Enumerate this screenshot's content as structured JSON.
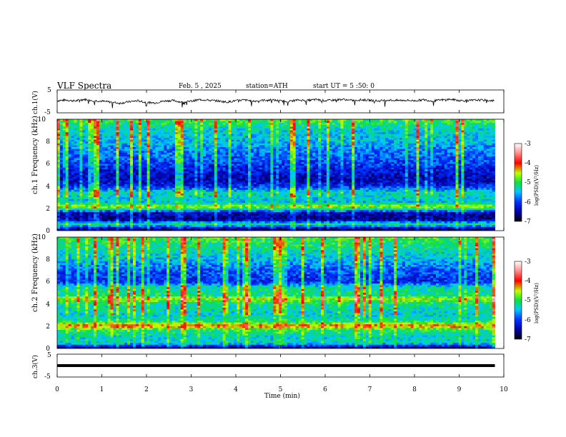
{
  "header": {
    "title": "VLF Spectra",
    "date": "Feb. 5 , 2025",
    "station": "station=ATH",
    "start": "start UT = 5 :50: 0"
  },
  "chart_data": [
    {
      "type": "line",
      "name": "ch1-waveform",
      "ylabel": "ch.1(V)",
      "ylim": [
        -5,
        5
      ],
      "y_ticks": [
        "5",
        "-5"
      ],
      "xlim": [
        0,
        10
      ],
      "x": [
        0.0,
        0.2,
        0.4,
        0.6,
        0.8,
        1.0,
        1.2,
        1.4,
        1.6,
        1.8,
        2.0,
        2.2,
        2.4,
        2.6,
        2.8,
        3.0,
        3.2,
        3.4,
        3.6,
        3.8,
        4.0,
        4.2,
        4.4,
        4.6,
        4.8,
        5.0,
        5.2,
        5.4,
        5.6,
        5.8,
        6.0,
        6.2,
        6.4,
        6.6,
        6.8,
        7.0,
        7.2,
        7.4,
        7.6,
        7.8,
        8.0,
        8.2,
        8.4,
        8.6,
        8.8,
        9.0,
        9.2,
        9.4,
        9.6,
        9.8
      ],
      "values": [
        0.3,
        0.6,
        0.2,
        0.9,
        0.4,
        0.1,
        -0.3,
        -0.8,
        -0.2,
        0.3,
        -0.5,
        -0.6,
        0.2,
        0.4,
        -0.4,
        0.1,
        0.8,
        0.5,
        0.2,
        -0.3,
        0.3,
        0.6,
        0.1,
        0.5,
        0.7,
        0.2,
        0.1,
        0.6,
        0.4,
        0.8,
        0.3,
        0.6,
        0.9,
        0.4,
        0.7,
        0.5,
        0.2,
        0.6,
        0.4,
        0.5,
        0.3,
        0.7,
        0.2,
        0.6,
        0.9,
        0.4,
        0.3,
        0.6,
        0.5,
        0.2
      ]
    },
    {
      "type": "heatmap",
      "name": "ch1-spectrogram",
      "ylabel": "ch.1 Frequency (kHz)",
      "ylim": [
        0,
        10
      ],
      "y_ticks": [
        "10",
        "8",
        "6",
        "4",
        "2",
        "0"
      ],
      "xlim": [
        0,
        9.8
      ],
      "colorbar": {
        "label": "log(PSD)(V²/Hz)",
        "range": [
          -7,
          -3
        ],
        "ticks": [
          "-3",
          "-4",
          "-5",
          "-6",
          "-7"
        ]
      },
      "band_profile": [
        [
          10,
          -4.9
        ],
        [
          9,
          -5.4
        ],
        [
          8,
          -5.5
        ],
        [
          7,
          -5.8
        ],
        [
          6,
          -6.0
        ],
        [
          5.2,
          -6.3
        ],
        [
          4.5,
          -6.4
        ],
        [
          4.0,
          -6.1
        ],
        [
          3.4,
          -5.3
        ],
        [
          3.0,
          -5.4
        ],
        [
          2.5,
          -5.5
        ],
        [
          2.2,
          -4.6
        ],
        [
          2.0,
          -5.0
        ],
        [
          1.6,
          -6.4
        ],
        [
          1.0,
          -6.6
        ],
        [
          0.6,
          -5.2
        ],
        [
          0,
          -7.0
        ]
      ]
    },
    {
      "type": "heatmap",
      "name": "ch2-spectrogram",
      "ylabel": "ch.2 Frequency (kHz)",
      "ylim": [
        0,
        10
      ],
      "y_ticks": [
        "10",
        "8",
        "6",
        "4",
        "2",
        "0"
      ],
      "xlim": [
        0,
        9.8
      ],
      "colorbar": {
        "label": "log(PSD)(V²/Hz)",
        "range": [
          -7,
          -3
        ],
        "ticks": [
          "-3",
          "-4",
          "-5",
          "-6",
          "-7"
        ]
      },
      "band_profile": [
        [
          10,
          -4.9
        ],
        [
          9,
          -5.2
        ],
        [
          8,
          -5.5
        ],
        [
          7,
          -5.9
        ],
        [
          6,
          -6.1
        ],
        [
          5.5,
          -5.3
        ],
        [
          4.7,
          -5.1
        ],
        [
          4.5,
          -4.5
        ],
        [
          4.0,
          -5.2
        ],
        [
          3.5,
          -5.3
        ],
        [
          3.0,
          -5.4
        ],
        [
          2.5,
          -5.2
        ],
        [
          2.0,
          -4.2
        ],
        [
          1.7,
          -5.0
        ],
        [
          1.0,
          -5.4
        ],
        [
          0.5,
          -5.3
        ],
        [
          0,
          -6.8
        ]
      ]
    },
    {
      "type": "line",
      "name": "ch3-waveform",
      "ylabel": "ch.3(V)",
      "ylim": [
        -5,
        5
      ],
      "y_ticks": [
        "5",
        "-5"
      ],
      "xlim": [
        0,
        10
      ],
      "x": [
        0.0,
        9.8
      ],
      "values": [
        0.0,
        0.0
      ]
    }
  ],
  "x_axis": {
    "label": "Time (min)",
    "ticks": [
      "0",
      "1",
      "2",
      "3",
      "4",
      "5",
      "6",
      "7",
      "8",
      "9",
      "10"
    ]
  }
}
